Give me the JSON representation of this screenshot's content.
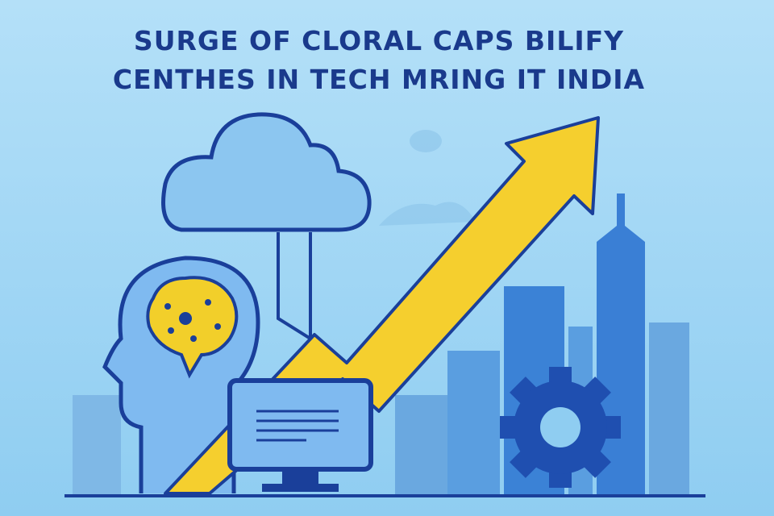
{
  "title": {
    "line1": "SURGE OF CLORAL CAPS BILIFY",
    "line2": "CENTHES IN TECH MRING IT INDIA"
  }
}
